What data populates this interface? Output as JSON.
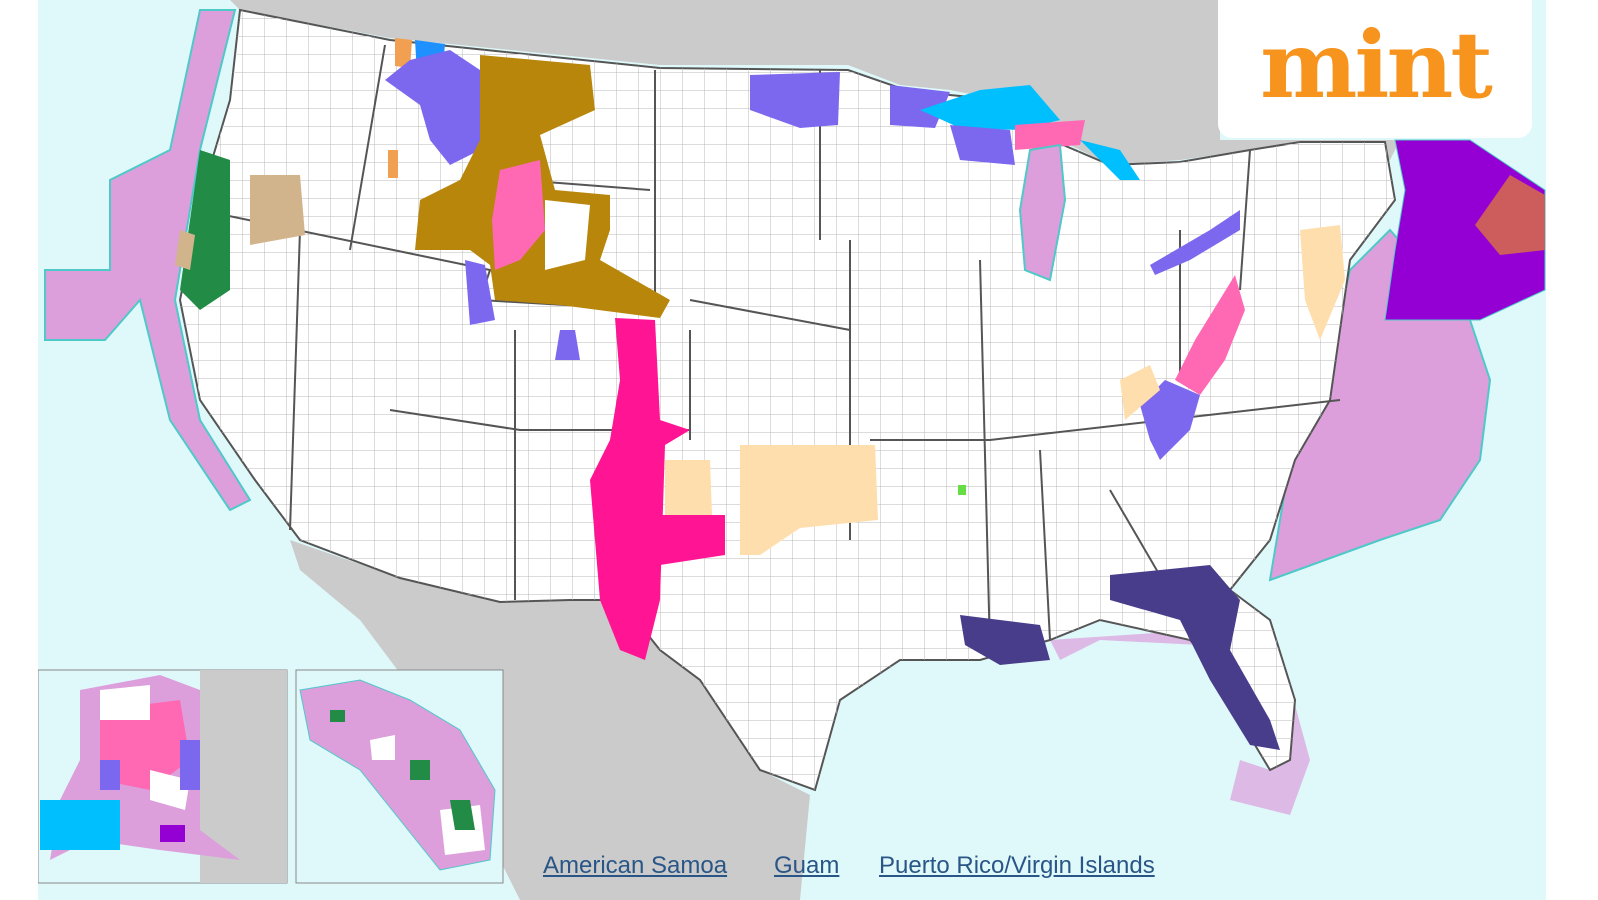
{
  "map": {
    "colors": {
      "ocean": "#dff9fa",
      "marine_zone_line": "#4fc8c8",
      "land_outside": "#cbcbcb",
      "us_land": "#ffffff",
      "county_line": "#b0b0b0",
      "state_line": "#555555",
      "coastal_pink": "#dc9fdc",
      "green": "#228b45",
      "tan": "#d2b48c",
      "gold": "#b8860b",
      "blue_purple": "#7b68ee",
      "pink": "#ff69b4",
      "magenta": "#ff1493",
      "peach": "#ffdead",
      "dark_purple": "#483d8b",
      "violet": "#9400d3",
      "brick": "#cd5c5c",
      "cyan": "#00bfff"
    }
  },
  "links": [
    "American Samoa",
    "Guam",
    "Puerto Rico/Virgin Islands"
  ],
  "logo": {
    "text": "mint"
  }
}
